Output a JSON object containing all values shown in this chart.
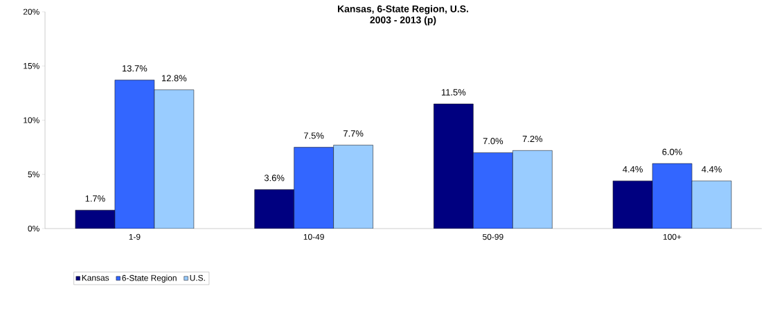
{
  "chart_data": {
    "type": "bar",
    "title": "Kansas, 6-State Region, U.S.",
    "subtitle": "2003 - 2013 (p)",
    "categories": [
      "1-9",
      "10-49",
      "50-99",
      "100+"
    ],
    "series": [
      {
        "name": "Kansas",
        "color": "#000080",
        "values": [
          1.7,
          3.6,
          11.5,
          4.4
        ],
        "value_labels": [
          "1.7%",
          "3.6%",
          "11.5%",
          "4.4%"
        ]
      },
      {
        "name": "6-State Region",
        "color": "#3366ff",
        "values": [
          13.7,
          7.5,
          7.0,
          6.0
        ],
        "value_labels": [
          "13.7%",
          "7.5%",
          "7.0%",
          "6.0%"
        ]
      },
      {
        "name": "U.S.",
        "color": "#99ccff",
        "values": [
          12.8,
          7.7,
          7.2,
          4.4
        ],
        "value_labels": [
          "12.8%",
          "7.7%",
          "7.2%",
          "4.4%"
        ]
      }
    ],
    "ylim": [
      0,
      20
    ],
    "yticks": [
      {
        "value": 0,
        "label": "0%"
      },
      {
        "value": 5,
        "label": "5%"
      },
      {
        "value": 10,
        "label": "10%"
      },
      {
        "value": 15,
        "label": "15%"
      },
      {
        "value": 20,
        "label": "20%"
      }
    ],
    "grid": false,
    "legend": "bottom left"
  }
}
